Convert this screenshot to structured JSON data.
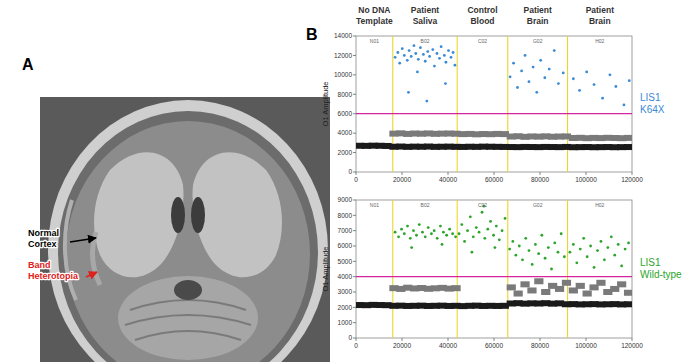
{
  "figure": {
    "panel_a": {
      "label": "A",
      "annotations": [
        {
          "lines": [
            "Normal",
            "Cortex"
          ],
          "color": "#000000"
        },
        {
          "lines": [
            "Band",
            "Heterotopia"
          ],
          "color": "#e0201b"
        }
      ]
    },
    "panel_b": {
      "label": "B"
    },
    "wells": [
      {
        "label": [
          "No DNA",
          "Template"
        ],
        "code": "N01",
        "start": 0,
        "end": 16000
      },
      {
        "label": [
          "Patient",
          "Saliva"
        ],
        "code": "B02",
        "start": 16000,
        "end": 44000
      },
      {
        "label": [
          "Control",
          "Blood"
        ],
        "code": "C02",
        "start": 44000,
        "end": 66000
      },
      {
        "label": [
          "Patient",
          "Brain"
        ],
        "code": "G02",
        "start": 66000,
        "end": 92000
      },
      {
        "label": [
          "Patient",
          "Brain"
        ],
        "code": "H02",
        "start": 92000,
        "end": 120000
      }
    ]
  },
  "chart_data": [
    {
      "type": "scatter",
      "title": "LIS1 K64X",
      "ylabel": "O1 Amplitude",
      "xlim": [
        0,
        120000
      ],
      "xticks": [
        0,
        20000,
        40000,
        60000,
        80000,
        100000,
        120000
      ],
      "ylim": [
        0,
        14000
      ],
      "yticks": [
        0,
        2000,
        4000,
        6000,
        8000,
        10000,
        12000,
        14000
      ],
      "threshold": 6000,
      "series": [
        {
          "color": "#1a1a1a",
          "marker": "dash",
          "x": [
            1500,
            4500,
            7500,
            10500,
            13500,
            16500,
            19500,
            22500,
            25500,
            28500,
            31500,
            34500,
            37500,
            40500,
            43500,
            46500,
            49500,
            52500,
            55500,
            58500,
            61500,
            64500,
            67500,
            70500,
            73500,
            76500,
            79500,
            82500,
            85500,
            88500,
            91500,
            94500,
            97500,
            100500,
            103500,
            106500,
            109500,
            112500,
            115500,
            118500
          ],
          "values": [
            2700,
            2690,
            2710,
            2700,
            2680,
            2600,
            2620,
            2590,
            2610,
            2600,
            2620,
            2590,
            2600,
            2610,
            2590,
            2580,
            2600,
            2590,
            2610,
            2600,
            2590,
            2580,
            2570,
            2560,
            2580,
            2570,
            2560,
            2580,
            2570,
            2560,
            2580,
            2550,
            2560,
            2570,
            2550,
            2560,
            2570,
            2550,
            2560,
            2570
          ]
        },
        {
          "color": "#7a7a7a",
          "marker": "dash",
          "x": [
            16500,
            19500,
            22500,
            25500,
            28500,
            31500,
            34500,
            37500,
            40500,
            43500,
            46500,
            49500,
            52500,
            55500,
            58500,
            61500,
            64500,
            67500,
            70500,
            73500,
            76500,
            79500,
            82500,
            85500,
            88500,
            91500,
            94500,
            97500,
            100500,
            103500,
            106500,
            109500,
            112500,
            115500,
            118500
          ],
          "values": [
            3950,
            3980,
            3920,
            3960,
            3940,
            3970,
            3930,
            3950,
            3960,
            3940,
            3900,
            3920,
            3880,
            3910,
            3890,
            3920,
            3900,
            3650,
            3680,
            3620,
            3660,
            3640,
            3670,
            3630,
            3650,
            3660,
            3500,
            3520,
            3480,
            3510,
            3490,
            3520,
            3500,
            3480,
            3510
          ]
        },
        {
          "color": "#3a8ad6",
          "marker": "circle",
          "x": [
            17000,
            18200,
            19000,
            20100,
            21000,
            22300,
            23100,
            24000,
            25200,
            26000,
            27100,
            28000,
            29300,
            30100,
            31200,
            32000,
            33400,
            34100,
            35200,
            36300,
            37000,
            38400,
            39100,
            40200,
            41300,
            42200,
            43000,
            22800,
            30800,
            38900,
            26700,
            67000,
            68500,
            70200,
            72000,
            73500,
            75200,
            77000,
            78600,
            80300,
            82100,
            84000,
            86200,
            88000,
            90100,
            94500,
            97200,
            100300,
            103500,
            107200,
            110400,
            113000,
            116500,
            118800
          ],
          "values": [
            11800,
            12300,
            11200,
            12700,
            12000,
            11500,
            12500,
            11900,
            13000,
            12200,
            11600,
            12800,
            12100,
            11400,
            12400,
            11900,
            12600,
            10900,
            12200,
            11700,
            12900,
            12000,
            11300,
            12500,
            11800,
            12300,
            11000,
            8200,
            7300,
            9100,
            10300,
            9800,
            11200,
            8700,
            10400,
            12000,
            9300,
            10800,
            8200,
            11500,
            9700,
            10600,
            12500,
            9100,
            10200,
            9600,
            8400,
            10300,
            9000,
            7600,
            10000,
            8800,
            6900,
            9400
          ]
        }
      ]
    },
    {
      "type": "scatter",
      "title": "LIS1 Wild-type",
      "ylabel": "O1 Amplitude",
      "xlim": [
        0,
        120000
      ],
      "xticks": [
        0,
        20000,
        40000,
        60000,
        80000,
        100000,
        120000
      ],
      "ylim": [
        0,
        9000
      ],
      "yticks": [
        0,
        1000,
        2000,
        3000,
        4000,
        5000,
        6000,
        7000,
        8000,
        9000
      ],
      "threshold": 4000,
      "series": [
        {
          "color": "#1a1a1a",
          "marker": "dash",
          "x": [
            1500,
            4500,
            7500,
            10500,
            13500,
            16500,
            19500,
            22500,
            25500,
            28500,
            31500,
            34500,
            37500,
            40500,
            43500,
            46500,
            49500,
            52500,
            55500,
            58500,
            61500,
            64500,
            67500,
            70500,
            73500,
            76500,
            79500,
            82500,
            85500,
            88500,
            91500,
            94500,
            97500,
            100500,
            103500,
            106500,
            109500,
            112500,
            115500,
            118500
          ],
          "values": [
            2150,
            2140,
            2160,
            2150,
            2140,
            2100,
            2110,
            2090,
            2100,
            2110,
            2090,
            2100,
            2110,
            2090,
            2100,
            2080,
            2100,
            2110,
            2090,
            2100,
            2090,
            2100,
            2250,
            2270,
            2240,
            2260,
            2250,
            2270,
            2240,
            2260,
            2200,
            2210,
            2190,
            2200,
            2210,
            2190,
            2200,
            2210,
            2190,
            2200
          ]
        },
        {
          "color": "#7a7a7a",
          "marker": "dash",
          "x": [
            16500,
            19500,
            22500,
            25500,
            28500,
            31500,
            34500,
            37500,
            40500,
            43500,
            67500,
            70500,
            73500,
            76500,
            79500,
            82500,
            85500,
            88500,
            91500,
            94500,
            97500,
            100500,
            103500,
            106500,
            109500,
            112500,
            115500,
            118500
          ],
          "values": [
            3250,
            3200,
            3280,
            3230,
            3260,
            3210,
            3240,
            3270,
            3220,
            3250,
            3300,
            2900,
            3500,
            3100,
            3700,
            3000,
            3400,
            3200,
            3600,
            3100,
            3400,
            2900,
            3300,
            3600,
            3000,
            3200,
            3500,
            2950
          ]
        },
        {
          "color": "#2aa52a",
          "marker": "circle",
          "x": [
            17000,
            18500,
            19800,
            21000,
            22400,
            23600,
            25000,
            26300,
            27500,
            28900,
            30100,
            31400,
            32800,
            34000,
            35300,
            36700,
            38000,
            39400,
            40700,
            42000,
            43300,
            24200,
            37400,
            44800,
            46000,
            47200,
            48500,
            49700,
            51000,
            52300,
            53500,
            54800,
            56000,
            57300,
            58500,
            59800,
            61000,
            62300,
            63500,
            64800,
            50400,
            55600,
            60400,
            66800,
            68200,
            69500,
            71000,
            72400,
            73800,
            75200,
            76600,
            78000,
            79400,
            80800,
            82200,
            83600,
            85000,
            86400,
            87800,
            89200,
            90600,
            93000,
            94500,
            96000,
            97500,
            99000,
            100500,
            102000,
            103500,
            105000,
            106500,
            108000,
            109500,
            111000,
            112500,
            114000,
            115500,
            117000,
            118500
          ],
          "values": [
            6900,
            6600,
            7100,
            6800,
            7300,
            6500,
            7000,
            6700,
            7400,
            6900,
            6600,
            7200,
            6800,
            7000,
            6500,
            7300,
            6900,
            6700,
            7100,
            6800,
            6600,
            5900,
            6100,
            6800,
            7400,
            6300,
            7000,
            7900,
            6600,
            7200,
            6900,
            8200,
            6500,
            7100,
            7600,
            6700,
            7300,
            6400,
            7000,
            7800,
            5600,
            8600,
            5900,
            5800,
            6300,
            5400,
            6000,
            5100,
            6500,
            5700,
            4800,
            6100,
            5500,
            6700,
            5200,
            5900,
            4500,
            6200,
            5600,
            6800,
            5300,
            5600,
            6100,
            4900,
            5800,
            6500,
            5300,
            6000,
            4600,
            5700,
            6300,
            5100,
            5900,
            6600,
            5400,
            6100,
            4700,
            5800,
            6200
          ]
        }
      ]
    }
  ]
}
